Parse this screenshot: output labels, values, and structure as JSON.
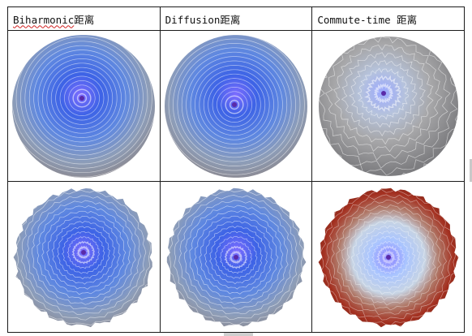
{
  "table": {
    "headers": [
      {
        "term": "Biharmonic",
        "suffix": "距离",
        "spell_flagged": true
      },
      {
        "term": "Diffusion",
        "suffix": "距离",
        "spell_flagged": false
      },
      {
        "term": "Commute-time",
        "suffix": " 距离",
        "spell_flagged": false
      }
    ]
  },
  "colors": {
    "near": "#8a9bff",
    "mid": "#3d63e6",
    "far": "#8c8c96",
    "far_warm": "#a43020",
    "contour": "#ffffff",
    "border": "#1a1a1a"
  }
}
